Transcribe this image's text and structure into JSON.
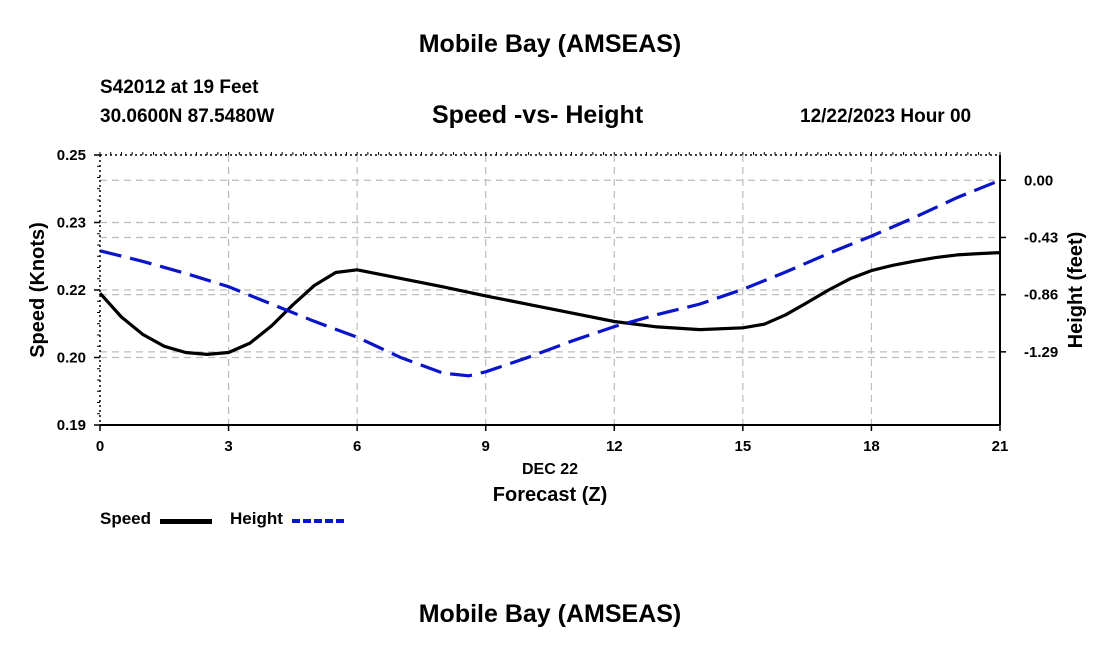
{
  "page": {
    "title_top": "Mobile Bay (AMSEAS)",
    "title_bottom": "Mobile Bay (AMSEAS)",
    "station": "S42012 at 19 Feet",
    "coordinates": "30.0600N  87.5480W",
    "subtitle": "Speed -vs- Height",
    "datetime": "12/22/2023 Hour 00"
  },
  "legend": {
    "speed_label": "Speed",
    "height_label": "Height"
  },
  "chart_data": {
    "type": "line",
    "title": "Speed -vs- Height",
    "xlabel": "Forecast (Z)",
    "xlabel_date": "DEC 22",
    "ylabel_left": "Speed (Knots)",
    "ylabel_right": "Height (feet)",
    "xlim": [
      0,
      21
    ],
    "x_ticks": [
      0,
      3,
      6,
      9,
      12,
      15,
      18,
      21
    ],
    "x_tick_labels": [
      "0",
      "3",
      "6",
      "9",
      "12",
      "15",
      "18",
      "21"
    ],
    "ylim_left": [
      0.19,
      0.25
    ],
    "left_tick_labels": [
      "0.25",
      "0.23",
      "0.22",
      "0.20",
      "0.19"
    ],
    "ylim_right": [
      -1.84,
      0.19
    ],
    "right_ticks": [
      0.0,
      -0.43,
      -0.86,
      -1.29
    ],
    "right_tick_labels": [
      "0.00",
      "-0.43",
      "-0.86",
      "-1.29"
    ],
    "grid": true,
    "legend_position": "bottom-left",
    "colors": {
      "speed": "#000000",
      "height": "#0a14c8",
      "grid": "#bdbdbd"
    },
    "series": [
      {
        "name": "Speed",
        "axis": "left",
        "style": "solid",
        "x": [
          0,
          0.5,
          1,
          1.5,
          2,
          2.5,
          3,
          3.5,
          4,
          4.5,
          5,
          5.5,
          6,
          7,
          8,
          9,
          10,
          11,
          12,
          13,
          14,
          15,
          15.5,
          16,
          16.5,
          17,
          17.5,
          18,
          18.5,
          19,
          19.5,
          20,
          20.5,
          21
        ],
        "values": [
          0.2193,
          0.214,
          0.2101,
          0.2075,
          0.2061,
          0.2057,
          0.2061,
          0.2082,
          0.212,
          0.2167,
          0.221,
          0.2239,
          0.2245,
          0.2226,
          0.2207,
          0.2187,
          0.2168,
          0.2149,
          0.213,
          0.2118,
          0.2112,
          0.2116,
          0.2124,
          0.2145,
          0.2172,
          0.22,
          0.2225,
          0.2243,
          0.2255,
          0.2264,
          0.2272,
          0.2278,
          0.2281,
          0.2283
        ]
      },
      {
        "name": "Height",
        "axis": "right",
        "style": "dashed",
        "x": [
          0,
          1,
          2,
          3,
          4,
          5,
          6,
          7,
          8,
          8.6,
          9,
          10,
          11,
          12,
          13,
          14,
          15,
          16,
          17,
          18,
          19,
          20,
          21
        ],
        "values": [
          -0.53,
          -0.61,
          -0.7,
          -0.8,
          -0.93,
          -1.06,
          -1.18,
          -1.33,
          -1.45,
          -1.47,
          -1.44,
          -1.33,
          -1.21,
          -1.1,
          -1.01,
          -0.93,
          -0.82,
          -0.69,
          -0.55,
          -0.42,
          -0.28,
          -0.13,
          0.0
        ]
      }
    ]
  }
}
